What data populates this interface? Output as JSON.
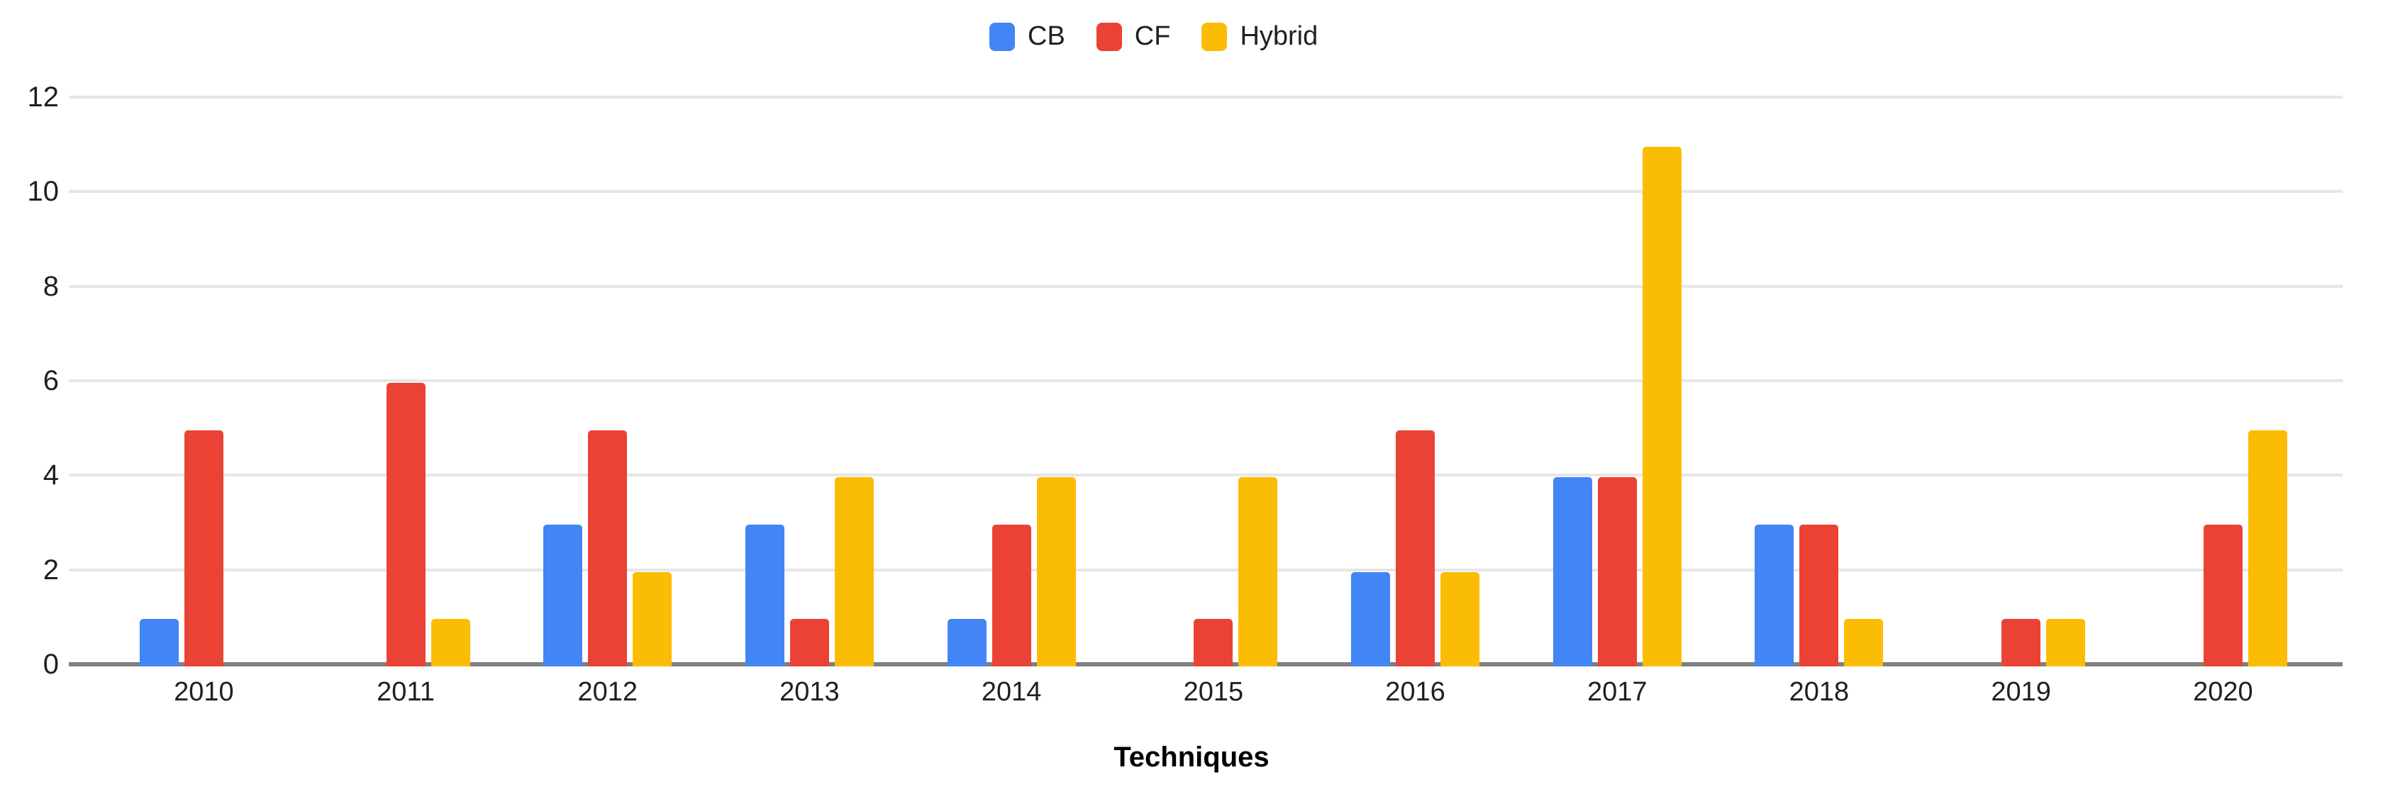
{
  "chart_data": {
    "type": "bar",
    "title": "",
    "xlabel": "Techniques",
    "ylabel": "",
    "categories": [
      "2010",
      "2011",
      "2012",
      "2013",
      "2014",
      "2015",
      "2016",
      "2017",
      "2018",
      "2019",
      "2020"
    ],
    "series": [
      {
        "name": "CB",
        "color": "#4285F4",
        "values": [
          1,
          0,
          3,
          3,
          1,
          0,
          2,
          4,
          3,
          0,
          0
        ]
      },
      {
        "name": "CF",
        "color": "#EA4335",
        "values": [
          5,
          6,
          5,
          1,
          3,
          1,
          5,
          4,
          3,
          1,
          3
        ]
      },
      {
        "name": "Hybrid",
        "color": "#FBBC04",
        "values": [
          0,
          1,
          2,
          4,
          4,
          4,
          2,
          11,
          1,
          1,
          5
        ]
      }
    ],
    "ylim": [
      0,
      12
    ],
    "yticks": [
      0,
      2,
      4,
      6,
      8,
      10,
      12
    ],
    "grid": true,
    "legend_position": "top",
    "axis_color": "#7f7f7f",
    "gridline_color": "#e6e6e6",
    "label_color": "#1f1f1f"
  }
}
